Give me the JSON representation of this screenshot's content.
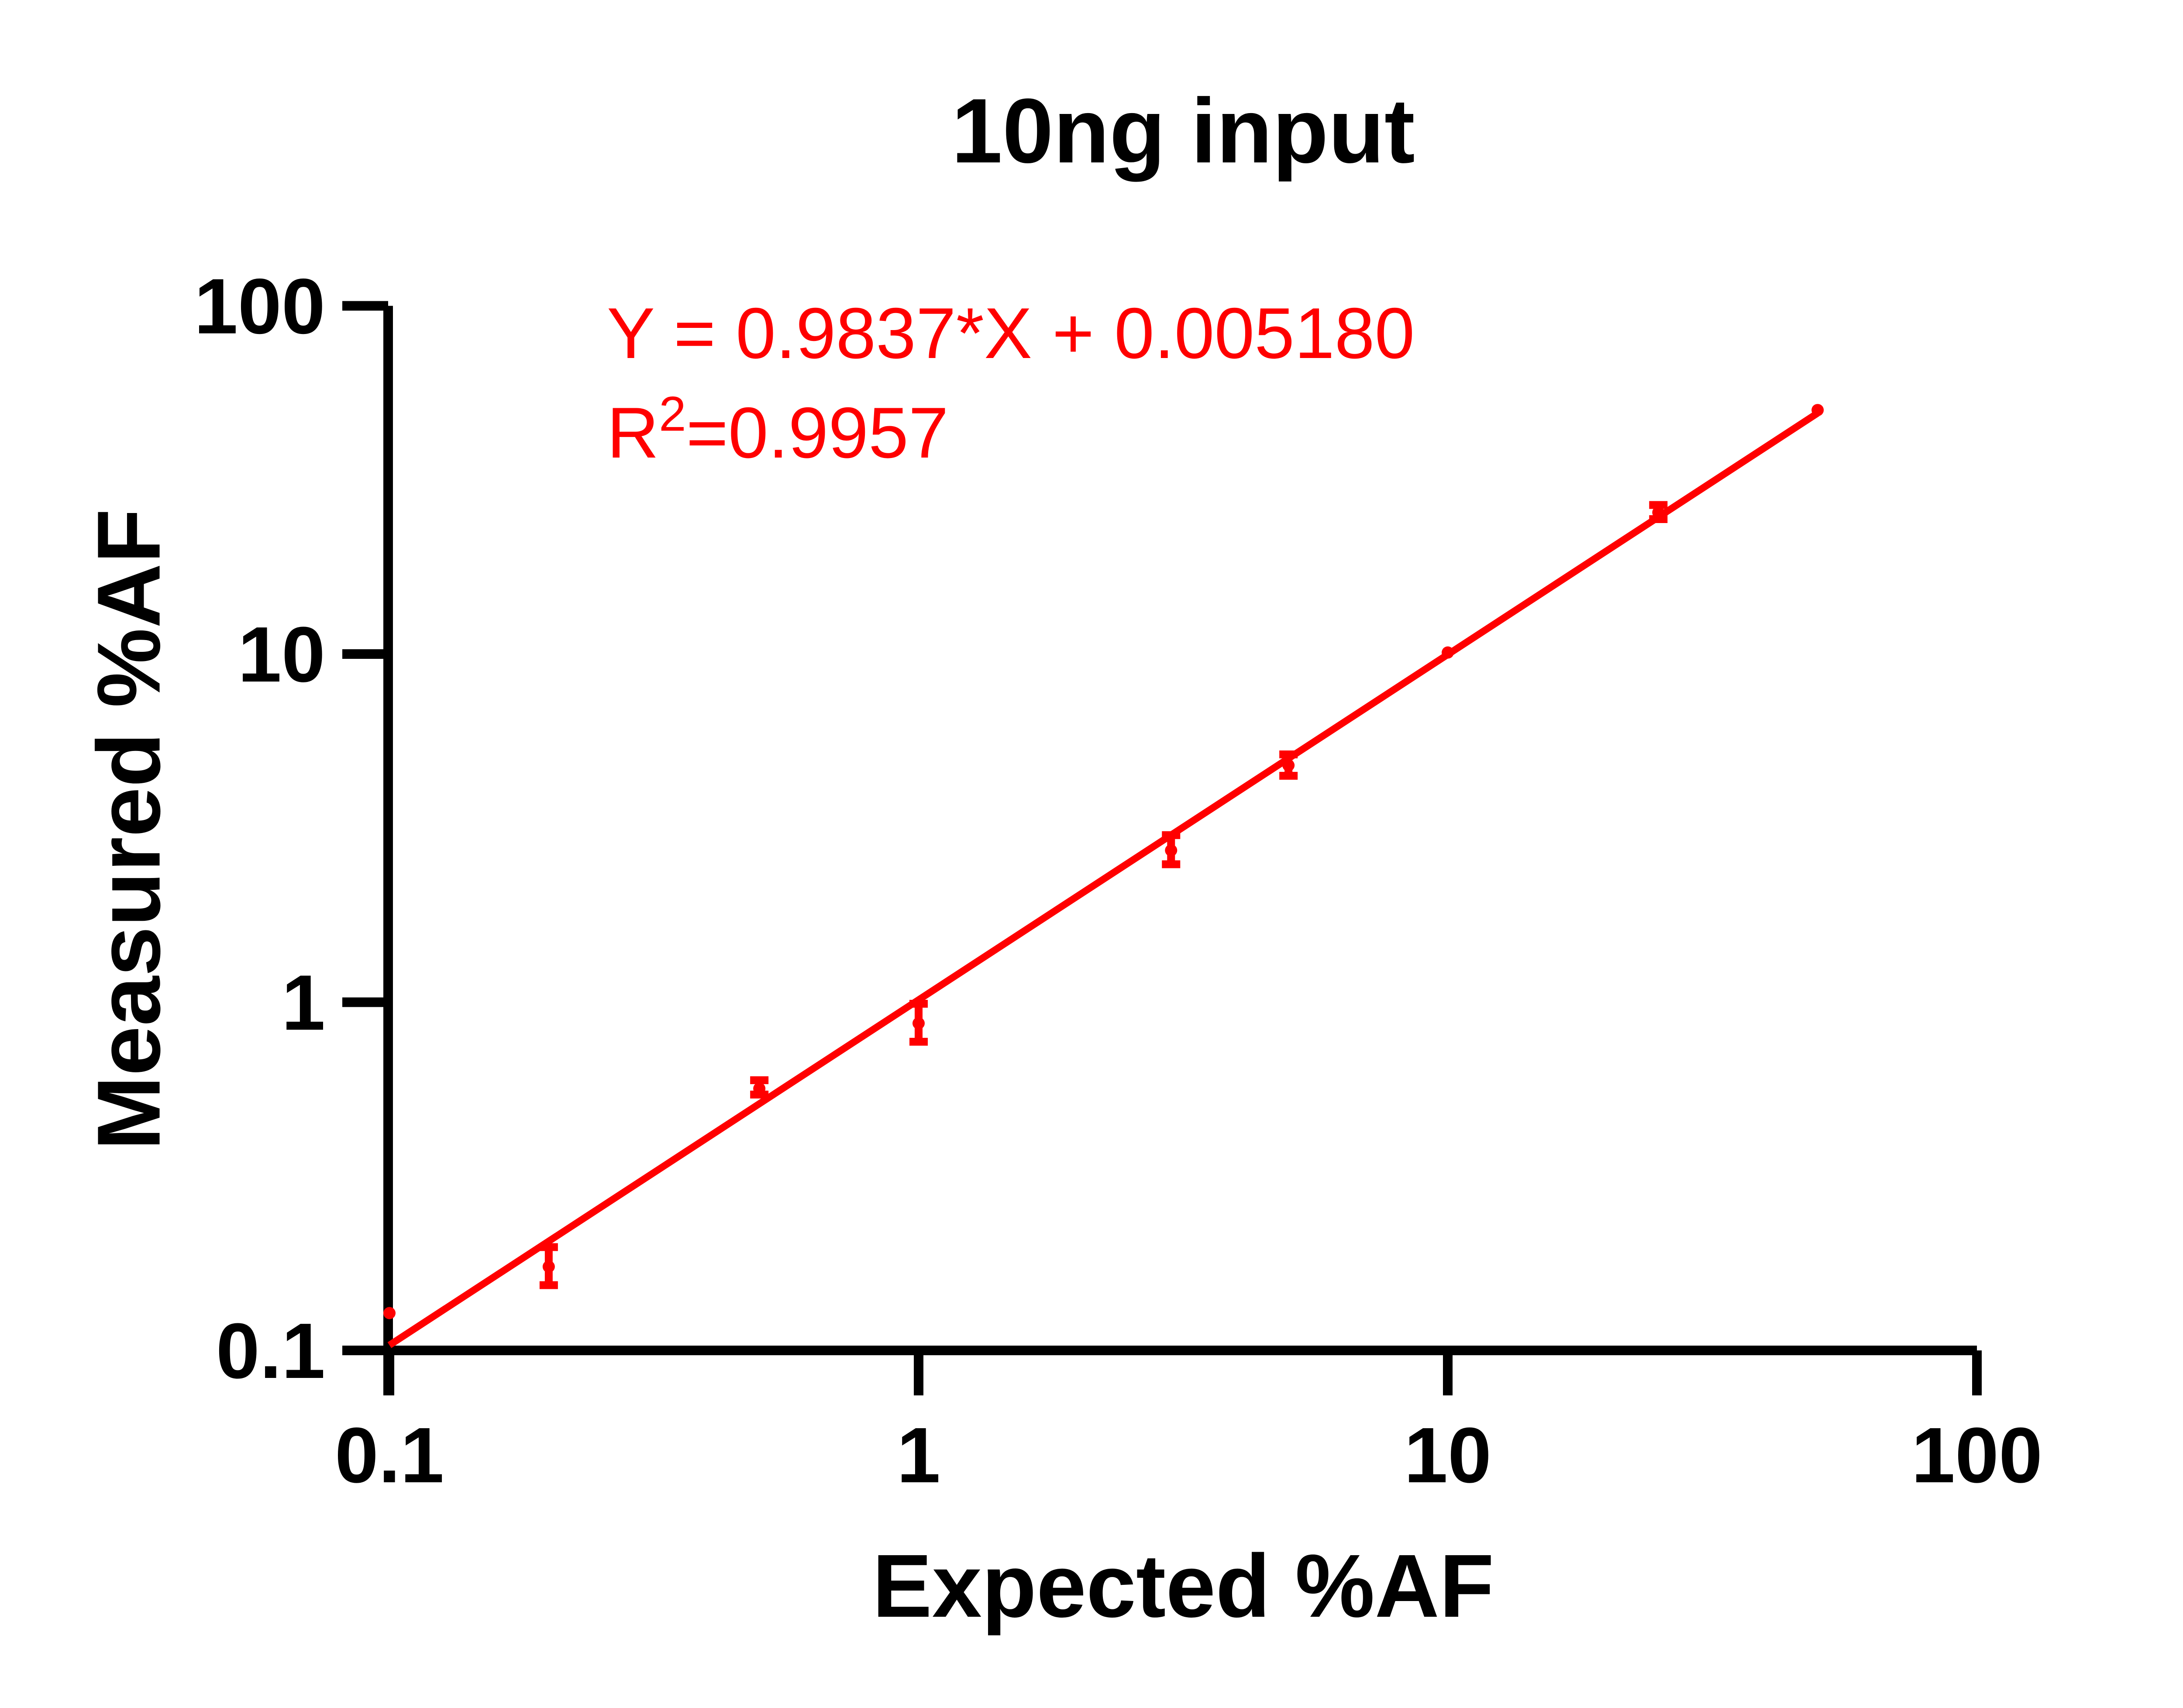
{
  "figure": {
    "title": "10ng input",
    "background_color": "#FFFFFF",
    "axis_color": "#000000",
    "accent_color": "#FF0000"
  },
  "annotation": {
    "equation": "Y = 0.9837*X + 0.005180",
    "r2_base": "R",
    "r2_exponent": "2",
    "r2_rest": "=0.9957",
    "color": "#FF0000"
  },
  "chart_data": {
    "type": "scatter",
    "title": "10ng input",
    "xlabel": "Expected %AF",
    "ylabel": "Measured %AF",
    "x_scale": "log",
    "y_scale": "log",
    "xlim": [
      0.1,
      100
    ],
    "ylim": [
      0.1,
      100
    ],
    "x_ticks": [
      0.1,
      1,
      10,
      100
    ],
    "x_tick_labels": [
      "0.1",
      "1",
      "10",
      "100"
    ],
    "y_ticks": [
      0.1,
      1,
      10,
      100
    ],
    "y_tick_labels": [
      "0.1",
      "1",
      "10",
      "100"
    ],
    "grid": false,
    "legend": false,
    "series": [
      {
        "name": "10ng input",
        "color": "#FF0000",
        "marker": "circle",
        "points": [
          {
            "x": 0.1,
            "y": 0.128,
            "err_plus": 0,
            "err_minus": 0
          },
          {
            "x": 0.2,
            "y": 0.174,
            "err_plus": 0.024,
            "err_minus": 0.02
          },
          {
            "x": 0.5,
            "y": 0.565,
            "err_plus": 0.032,
            "err_minus": 0.022
          },
          {
            "x": 1,
            "y": 0.87,
            "err_plus": 0.12,
            "err_minus": 0.1
          },
          {
            "x": 3,
            "y": 2.73,
            "err_plus": 0.29,
            "err_minus": 0.24
          },
          {
            "x": 5,
            "y": 4.79,
            "err_plus": 0.36,
            "err_minus": 0.32
          },
          {
            "x": 10,
            "y": 10.1,
            "err_plus": 0,
            "err_minus": 0
          },
          {
            "x": 25,
            "y": 25.5,
            "err_plus": 1.3,
            "err_minus": 1.1
          },
          {
            "x": 50,
            "y": 50.2,
            "err_plus": 0,
            "err_minus": 0
          }
        ]
      }
    ],
    "fit_line": {
      "slope": 0.9837,
      "intercept": 0.00518,
      "x_start": 0.1,
      "x_end": 50,
      "color": "#FF0000"
    }
  }
}
